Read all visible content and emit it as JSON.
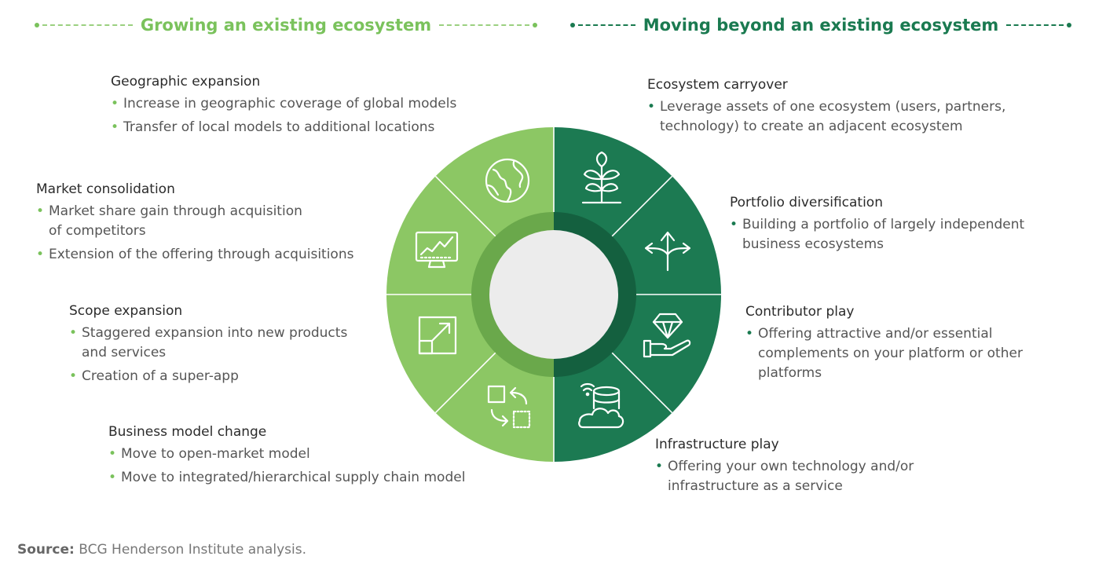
{
  "headers": {
    "left": "Growing an existing ecosystem",
    "right": "Moving beyond an existing ecosystem"
  },
  "colors": {
    "light_green": "#8cc764",
    "dark_green": "#1c7a52",
    "left_header": "#7ac25c",
    "right_header": "#1a7a50"
  },
  "left_blocks": [
    {
      "title": "Geographic expansion",
      "icon": "globe-icon",
      "bullets": [
        "Increase in geographic coverage of global models",
        "Transfer of local models to additional locations"
      ]
    },
    {
      "title": "Market consolidation",
      "icon": "chart-monitor-icon",
      "bullets": [
        "Market share gain through acquisition\nof competitors",
        "Extension of the offering through acquisitions"
      ]
    },
    {
      "title": "Scope expansion",
      "icon": "expand-arrow-icon",
      "bullets": [
        "Staggered expansion into new products\nand services",
        "Creation of a super-app"
      ]
    },
    {
      "title": "Business model change",
      "icon": "swap-squares-icon",
      "bullets": [
        "Move to open-market model",
        "Move to integrated/hierarchical supply chain model"
      ]
    }
  ],
  "right_blocks": [
    {
      "title": "Ecosystem carryover",
      "icon": "plant-icon",
      "bullets": [
        "Leverage assets of one ecosystem (users, partners,\ntechnology) to create an adjacent ecosystem"
      ]
    },
    {
      "title": "Portfolio diversification",
      "icon": "split-arrows-icon",
      "bullets": [
        "Building a portfolio of largely independent\nbusiness ecosystems"
      ]
    },
    {
      "title": "Contributor play",
      "icon": "diamond-hand-icon",
      "bullets": [
        "Offering attractive and/or essential\ncomplements on your platform or other\nplatforms"
      ]
    },
    {
      "title": "Infrastructure play",
      "icon": "cloud-database-icon",
      "bullets": [
        "Offering your own technology and/or\ninfrastructure as a service"
      ]
    }
  ],
  "source": {
    "label": "Source:",
    "text": "BCG Henderson Institute analysis."
  }
}
